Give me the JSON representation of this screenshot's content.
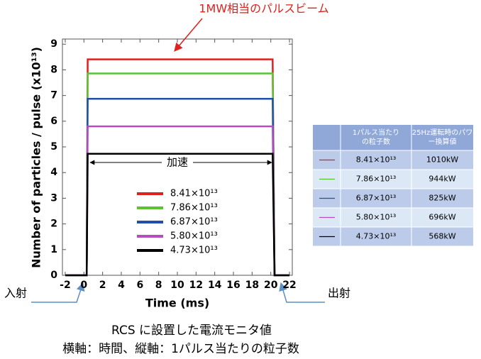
{
  "chart_data": {
    "type": "line",
    "xlabel": "Time (ms)",
    "ylabel": "Number of particles / pulse (x10¹³)",
    "x": [
      -2,
      0.3,
      0.4,
      20.2,
      20.4,
      22
    ],
    "series": [
      {
        "name": "8.41×10¹³",
        "color": "#e0201b",
        "values": [
          0,
          0,
          8.41,
          8.41,
          0,
          0
        ]
      },
      {
        "name": "7.86×10¹³",
        "color": "#5cc234",
        "values": [
          0,
          0,
          7.86,
          7.86,
          0,
          0
        ]
      },
      {
        "name": "6.87×10¹³",
        "color": "#1f4fa8",
        "values": [
          0,
          0,
          6.87,
          6.87,
          0,
          0
        ]
      },
      {
        "name": "5.80×10¹³",
        "color": "#b54cc0",
        "values": [
          0,
          0,
          5.8,
          5.8,
          0,
          0
        ]
      },
      {
        "name": "4.73×10¹³",
        "color": "#000000",
        "values": [
          0,
          0,
          4.73,
          4.73,
          0,
          0
        ]
      }
    ],
    "xlim": [
      -2.3,
      22.3
    ],
    "xticks": [
      -2,
      0,
      2,
      4,
      6,
      8,
      10,
      12,
      14,
      16,
      18,
      20,
      22
    ],
    "ylim": [
      0,
      9.2
    ],
    "yticks": [
      0,
      1,
      2,
      3,
      4,
      5,
      6,
      7,
      8,
      9
    ],
    "annotations": {
      "top": "1MW相当のパルスビーム",
      "accel": "加速",
      "inject": "入射",
      "extract": "出射"
    }
  },
  "table": {
    "header": [
      "1パルス当たりの粒子数",
      "25Hz運転時のパワー換算値"
    ],
    "rows": [
      [
        "8.41×10¹³",
        "1010kW"
      ],
      [
        "7.86×10¹³",
        "944kW"
      ],
      [
        "6.87×10¹³",
        "825kW"
      ],
      [
        "5.80×10¹³",
        "696kW"
      ],
      [
        "4.73×10¹³",
        "568kW"
      ]
    ]
  },
  "caption": [
    "RCS に設置した電流モニタ値",
    "横軸：時間、縦軸：1パルス当たりの粒子数"
  ]
}
